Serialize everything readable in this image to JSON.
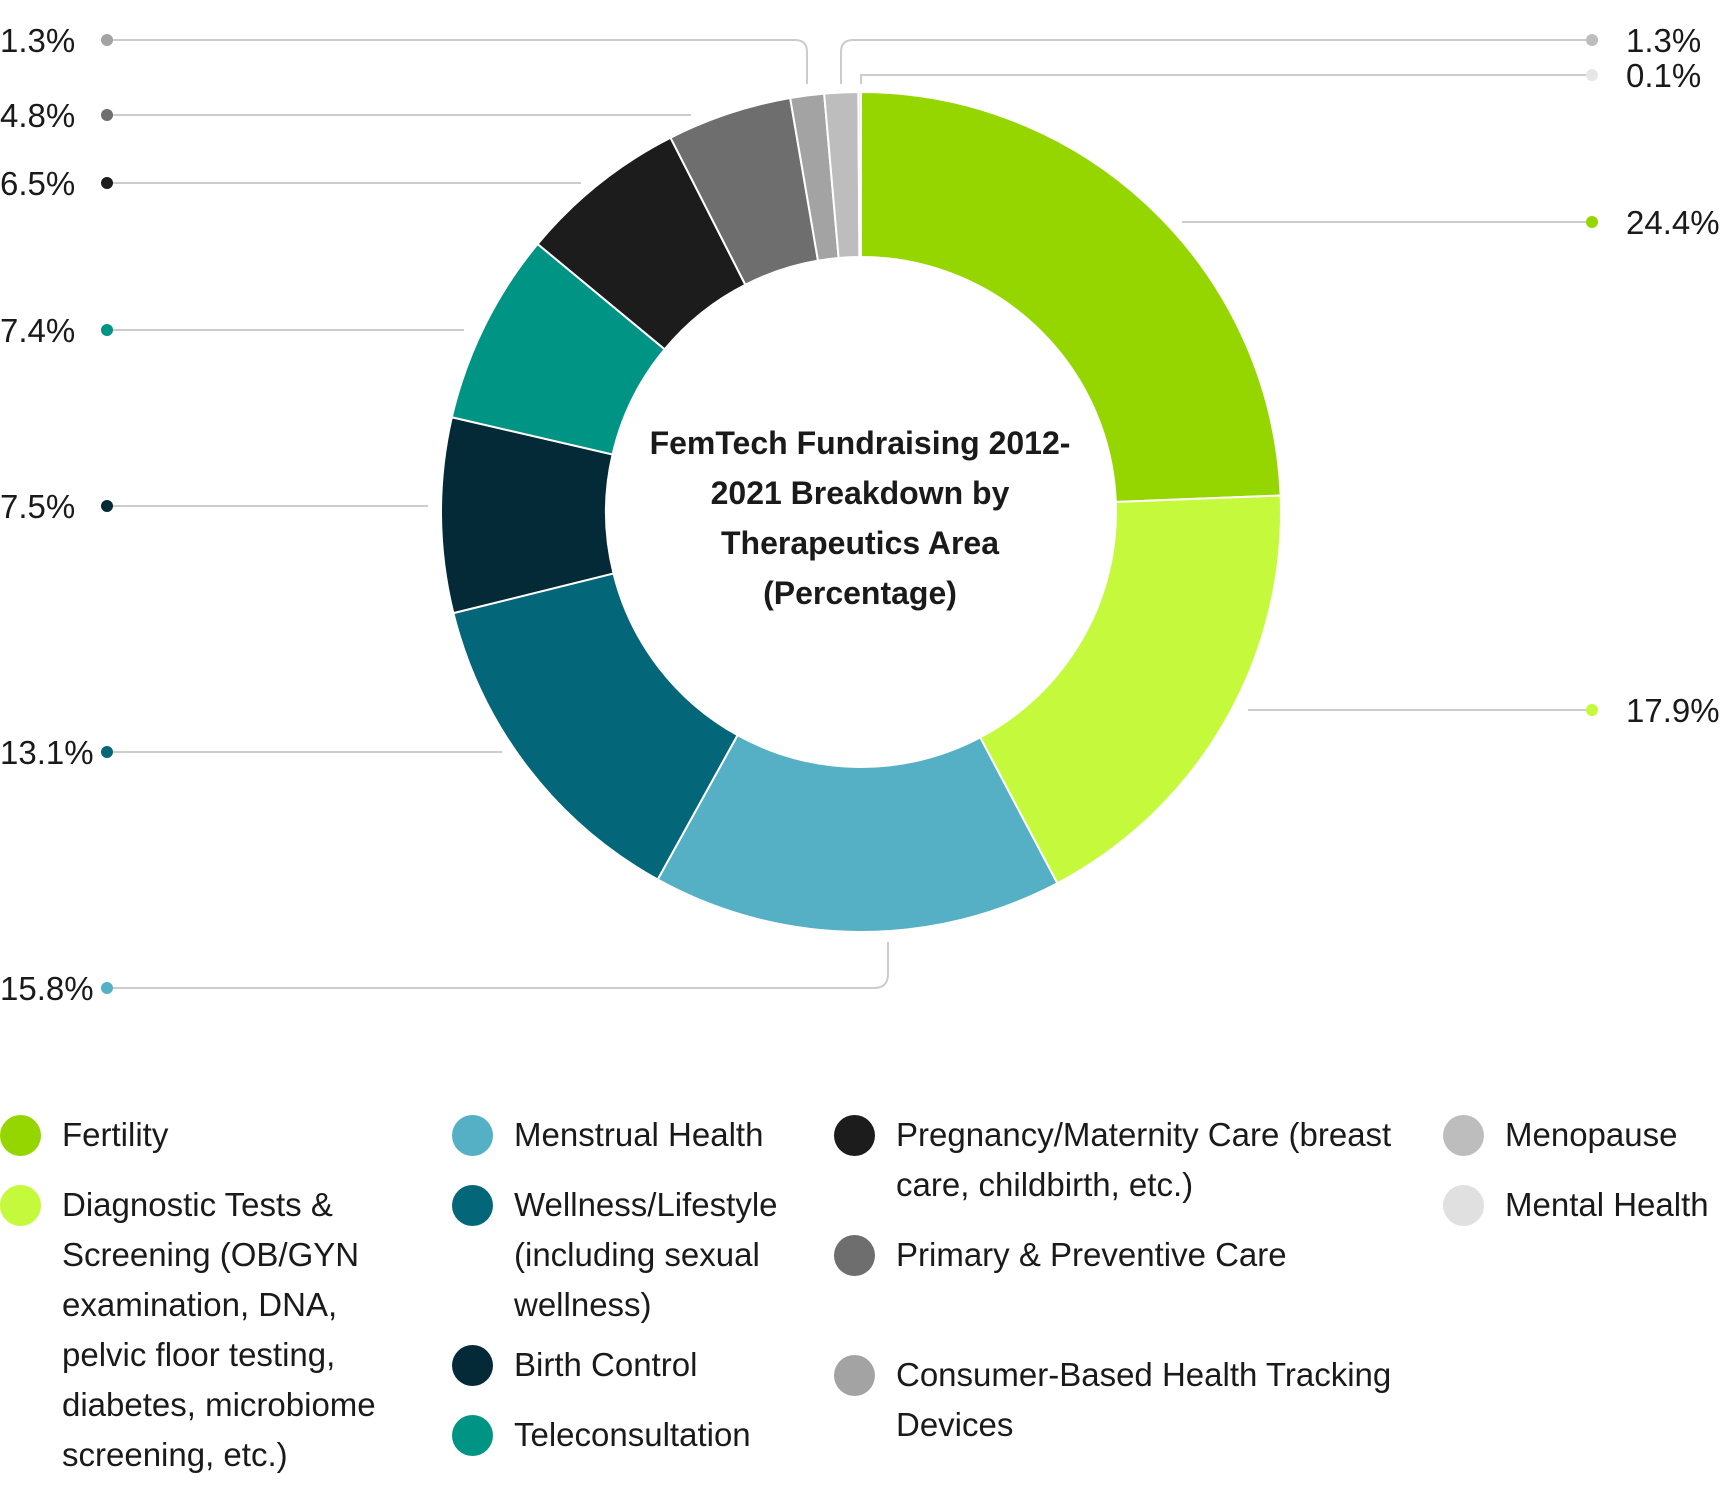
{
  "chart_data": {
    "type": "pie",
    "variant": "donut",
    "title": "FemTech Fundraising 2012-2021 Breakdown by Therapeutics Area (Percentage)",
    "unit": "%",
    "legend_position": "bottom",
    "series": [
      {
        "name": "Fertility",
        "value": 24.4,
        "label": "24.4%",
        "color": "#96D600"
      },
      {
        "name": "Diagnostic Tests & Screening (OB/GYN examination, DNA, pelvic floor testing, diabetes, microbiome screening, etc.)",
        "value": 17.9,
        "label": "17.9%",
        "color": "#C4FA3B"
      },
      {
        "name": "Menstrual Health",
        "value": 15.8,
        "label": "15.8%",
        "color": "#55B0C6"
      },
      {
        "name": "Wellness/Lifestyle (including sexual wellness)",
        "value": 13.1,
        "label": "13.1%",
        "color": "#046779"
      },
      {
        "name": "Birth Control",
        "value": 7.5,
        "label": "7.5%",
        "color": "#032A36"
      },
      {
        "name": "Teleconsultation",
        "value": 7.4,
        "label": "7.4%",
        "color": "#009485"
      },
      {
        "name": "Pregnancy/Maternity Care (breast care, childbirth, etc.)",
        "value": 6.5,
        "label": "6.5%",
        "color": "#1C1C1C"
      },
      {
        "name": "Primary & Preventive Care",
        "value": 4.8,
        "label": "4.8%",
        "color": "#6E6E6E"
      },
      {
        "name": "Consumer-Based Health Tracking Devices",
        "value": 1.3,
        "label": "1.3%",
        "color": "#A3A3A3"
      },
      {
        "name": "Menopause",
        "value": 1.3,
        "label": "1.3%",
        "color": "#BDBDBD"
      },
      {
        "name": "Mental Health",
        "value": 0.1,
        "label": "0.1%",
        "color": "#E0E0E0"
      }
    ]
  },
  "legend": {
    "columns": [
      [
        "Fertility",
        "Diagnostic Tests & Screening (OB/GYN examination, DNA, pelvic floor testing, diabetes, microbiome screening, etc.)"
      ],
      [
        "Menstrual Health",
        "Wellness/Lifestyle (including sexual wellness)",
        "Birth Control",
        "Teleconsultation"
      ],
      [
        "Pregnancy/Maternity Care (breast care, childbirth, etc.)",
        "Primary & Preventive Care",
        "Consumer-Based Health Tracking Devices"
      ],
      [
        "Menopause",
        "Mental Health"
      ]
    ]
  }
}
